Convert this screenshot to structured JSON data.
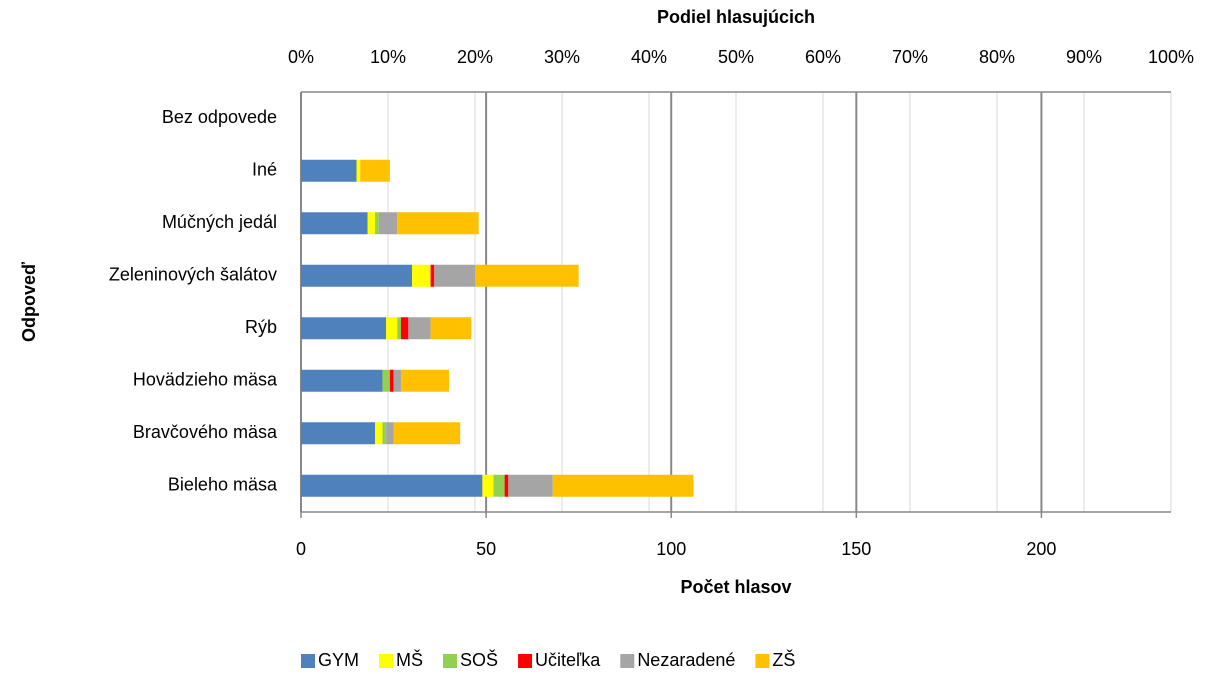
{
  "chart_data": {
    "type": "stacked_barh",
    "x2_title": "Podiel hlasujúcich",
    "xlabel": "Počet hlasov",
    "ylabel": "Odpoveď",
    "categories": [
      "Bez odpovede",
      "Iné",
      "Múčných jedál",
      "Zeleninových šalátov",
      "Rýb",
      "Hovädzieho mäsa",
      "Bravčového mäsa",
      "Bieleho mäsa"
    ],
    "series": [
      {
        "name": "GYM",
        "color": "#4f81bd",
        "values": [
          0,
          15,
          18,
          30,
          23,
          22,
          20,
          49
        ]
      },
      {
        "name": "MŠ",
        "color": "#ffff00",
        "values": [
          0,
          1,
          2,
          5,
          3,
          0,
          2,
          3
        ]
      },
      {
        "name": "SOŠ",
        "color": "#92d050",
        "values": [
          0,
          0,
          1,
          0,
          1,
          2,
          1,
          3
        ]
      },
      {
        "name": "Učiteľka",
        "color": "#ff0000",
        "values": [
          0,
          0,
          0,
          1,
          2,
          1,
          0,
          1
        ]
      },
      {
        "name": "Nezaradené",
        "color": "#a5a5a5",
        "values": [
          0,
          0,
          5,
          11,
          6,
          2,
          2,
          12
        ]
      },
      {
        "name": "ZŠ",
        "color": "#ffc000",
        "values": [
          0,
          8,
          22,
          28,
          11,
          13,
          18,
          38
        ]
      }
    ],
    "xlim": [
      0,
      235
    ],
    "xticks": [
      0,
      50,
      100,
      150,
      200
    ],
    "x2lim": [
      0,
      100
    ],
    "x2ticks": [
      {
        "value": 0,
        "label": "0%"
      },
      {
        "value": 10,
        "label": "10%"
      },
      {
        "value": 20,
        "label": "20%"
      },
      {
        "value": 30,
        "label": "30%"
      },
      {
        "value": 40,
        "label": "40%"
      },
      {
        "value": 50,
        "label": "50%"
      },
      {
        "value": 60,
        "label": "60%"
      },
      {
        "value": 70,
        "label": "70%"
      },
      {
        "value": 80,
        "label": "80%"
      },
      {
        "value": 90,
        "label": "90%"
      },
      {
        "value": 100,
        "label": "100%"
      }
    ],
    "grid": true,
    "legend": "bottom"
  }
}
